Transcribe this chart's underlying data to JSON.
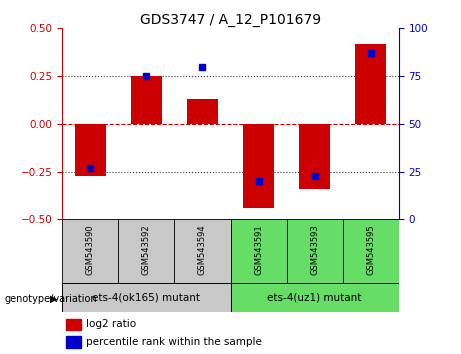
{
  "title": "GDS3747 / A_12_P101679",
  "samples": [
    "GSM543590",
    "GSM543592",
    "GSM543594",
    "GSM543591",
    "GSM543593",
    "GSM543595"
  ],
  "log2_ratios": [
    -0.27,
    0.25,
    0.13,
    -0.44,
    -0.34,
    0.42
  ],
  "percentile_ranks": [
    27,
    75,
    80,
    20,
    23,
    87
  ],
  "group1_indices": [
    0,
    1,
    2
  ],
  "group2_indices": [
    3,
    4,
    5
  ],
  "group1_label": "ets-4(ok165) mutant",
  "group2_label": "ets-4(uz1) mutant",
  "genotype_label": "genotype/variation",
  "ylim_left": [
    -0.5,
    0.5
  ],
  "ylim_right": [
    0,
    100
  ],
  "yticks_left": [
    -0.5,
    -0.25,
    0,
    0.25,
    0.5
  ],
  "yticks_right": [
    0,
    25,
    50,
    75,
    100
  ],
  "hlines_dotted": [
    -0.25,
    0.25
  ],
  "hline_zero": 0.0,
  "bar_color": "#cc0000",
  "dot_color": "#0000cc",
  "group1_bg": "#c8c8c8",
  "group2_bg": "#66dd66",
  "zero_line_color": "#cc0000",
  "legend_bar_label": "log2 ratio",
  "legend_dot_label": "percentile rank within the sample",
  "bar_width": 0.55
}
